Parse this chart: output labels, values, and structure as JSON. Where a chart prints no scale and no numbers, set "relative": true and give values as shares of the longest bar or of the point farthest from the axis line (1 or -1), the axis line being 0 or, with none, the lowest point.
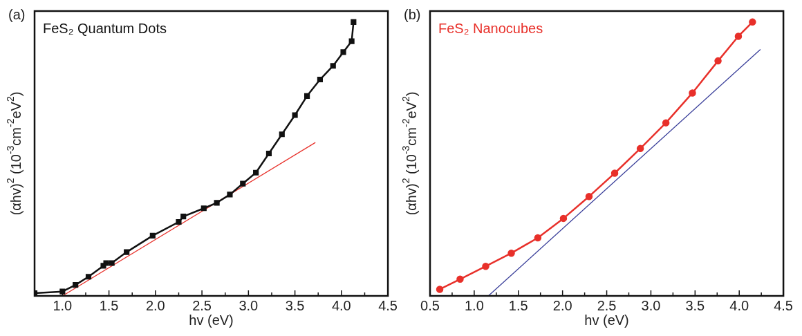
{
  "chart_data": [
    {
      "type": "line",
      "title": "(a)",
      "xlabel": "hv (eV)",
      "ylabel": "(αhv)$^{2}$ (10$^{-3}$cm$^{-2}$eV$^{2}$)",
      "relative": true,
      "tick_labels": "x",
      "grid": false,
      "legend": false,
      "marker": "square",
      "xlim": [
        0.7,
        4.5
      ],
      "xticks": [
        {
          "value": 1,
          "label": "1.0"
        },
        {
          "value": 1.25,
          "label": null
        },
        {
          "value": 1.5,
          "label": "1.5"
        },
        {
          "value": 1.75,
          "label": null
        },
        {
          "value": 2,
          "label": "2.0"
        },
        {
          "value": 2.25,
          "label": null
        },
        {
          "value": 2.5,
          "label": "2.5"
        },
        {
          "value": 2.75,
          "label": null
        },
        {
          "value": 3,
          "label": "3.0"
        },
        {
          "value": 3.25,
          "label": null
        },
        {
          "value": 3.5,
          "label": "3.5"
        },
        {
          "value": 3.75,
          "label": null
        },
        {
          "value": 4,
          "label": "4.0"
        },
        {
          "value": 4.25,
          "label": null
        },
        {
          "value": 4.5,
          "label": "4.5"
        }
      ],
      "series": [
        {
          "name": "FeS₂ Quantum Dots",
          "color": "#111111",
          "x": [
            0.7,
            1.0,
            1.14,
            1.28,
            1.44,
            1.47,
            1.53,
            1.69,
            1.97,
            2.25,
            2.3,
            2.52,
            2.66,
            2.8,
            2.94,
            3.08,
            3.22,
            3.36,
            3.5,
            3.63,
            3.77,
            3.91,
            4.02,
            4.11,
            4.13
          ],
          "values": [
            0.01,
            0.016,
            0.04,
            0.07,
            0.11,
            0.12,
            0.12,
            0.16,
            0.22,
            0.27,
            0.29,
            0.32,
            0.34,
            0.37,
            0.41,
            0.45,
            0.52,
            0.59,
            0.66,
            0.73,
            0.79,
            0.84,
            0.89,
            0.93,
            1.0
          ]
        },
        {
          "type": "line",
          "marker": "none",
          "color": "#e8322c",
          "x": [
            1.0,
            3.72
          ],
          "values": [
            0,
            0.56
          ]
        }
      ]
    },
    {
      "type": "line",
      "title": "(b)",
      "xlabel": "hv (eV)",
      "ylabel": "(αhv)$^{2}$ (10$^{-3}$cm$^{-2}$eV$^{2}$)",
      "relative": true,
      "tick_labels": "x",
      "grid": false,
      "legend": false,
      "marker": "circle",
      "xlim": [
        0.5,
        4.5
      ],
      "xticks": [
        {
          "value": 0.5,
          "label": "0.5"
        },
        {
          "value": 0.75,
          "label": null
        },
        {
          "value": 1,
          "label": "1.0"
        },
        {
          "value": 1.25,
          "label": null
        },
        {
          "value": 1.5,
          "label": "1.5"
        },
        {
          "value": 1.75,
          "label": null
        },
        {
          "value": 2,
          "label": "2.0"
        },
        {
          "value": 2.25,
          "label": null
        },
        {
          "value": 2.5,
          "label": "2.5"
        },
        {
          "value": 2.75,
          "label": null
        },
        {
          "value": 3,
          "label": "3.0"
        },
        {
          "value": 3.25,
          "label": null
        },
        {
          "value": 3.5,
          "label": "3.5"
        },
        {
          "value": 3.75,
          "label": null
        },
        {
          "value": 4,
          "label": "4.0"
        },
        {
          "value": 4.25,
          "label": null
        },
        {
          "value": 4.5,
          "label": "4.5"
        }
      ],
      "series": [
        {
          "name": "FeS₂ Nanocubes",
          "color": "#e8302a",
          "x": [
            0.61,
            0.84,
            1.13,
            1.42,
            1.72,
            2.01,
            2.3,
            2.59,
            2.88,
            3.17,
            3.47,
            3.76,
            3.99,
            4.15
          ],
          "values": [
            0.024,
            0.061,
            0.108,
            0.156,
            0.212,
            0.283,
            0.363,
            0.448,
            0.538,
            0.632,
            0.741,
            0.858,
            0.948,
            1.0
          ]
        },
        {
          "type": "line",
          "marker": "none",
          "color": "#3a3f9a",
          "x": [
            1.16,
            4.24
          ],
          "values": [
            0,
            0.9
          ]
        }
      ]
    }
  ]
}
